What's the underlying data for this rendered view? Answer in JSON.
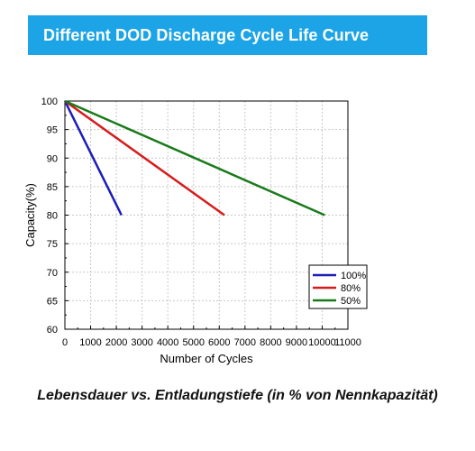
{
  "banner": {
    "title": "Different DOD Discharge Cycle Life Curve"
  },
  "caption": "Lebensdauer vs. Entladungstiefe (in % von Nennkapazität)",
  "colors": {
    "banner": "#1ca4e6",
    "grid": "#c8c8c8"
  },
  "chart_data": {
    "type": "line",
    "xlabel": "Number of Cycles",
    "ylabel": "Capacity(%)",
    "xlim": [
      0,
      11000
    ],
    "ylim": [
      60,
      100
    ],
    "xticks": [
      0,
      1000,
      2000,
      3000,
      4000,
      5000,
      6000,
      7000,
      8000,
      9000,
      10000,
      11000
    ],
    "yticks": [
      60,
      65,
      70,
      75,
      80,
      85,
      90,
      95,
      100
    ],
    "grid": true,
    "legend_position": "bottom-right",
    "series": [
      {
        "name": "100%",
        "color": "#1c1cb8",
        "x": [
          0,
          2200
        ],
        "y": [
          100,
          80
        ]
      },
      {
        "name": "80%",
        "color": "#d61c1c",
        "x": [
          0,
          6200
        ],
        "y": [
          100,
          80
        ]
      },
      {
        "name": "50%",
        "color": "#1a7a1a",
        "x": [
          0,
          10100
        ],
        "y": [
          100,
          80
        ]
      }
    ]
  }
}
